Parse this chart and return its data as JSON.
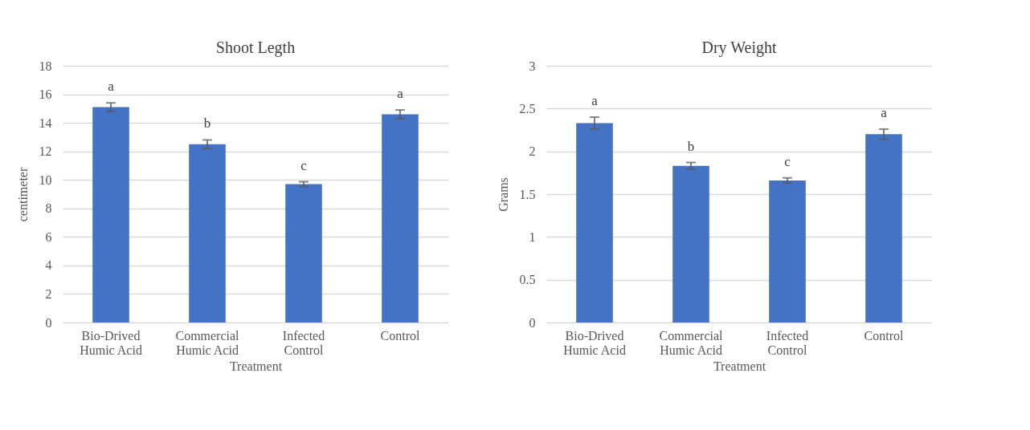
{
  "chart_data": [
    {
      "type": "bar",
      "title": "Shoot Legth",
      "xlabel": "Treatment",
      "ylabel": "centimeter",
      "categories": [
        "Bio-Drived Humic Acid",
        "Commercial Humic Acid",
        "Infected Control",
        "Control"
      ],
      "values": [
        15.1,
        12.5,
        9.7,
        14.6
      ],
      "color": "#4472c4",
      "errors": [
        0.3,
        0.3,
        0.17,
        0.3
      ],
      "ylim": [
        0,
        18
      ],
      "yticks": [
        0,
        2,
        4,
        6,
        8,
        10,
        12,
        14,
        16,
        18
      ],
      "grid": "y",
      "annotations": [
        {
          "text": "a",
          "x": "Bio-Drived Humic Acid",
          "y": 15.4
        },
        {
          "text": "b",
          "x": "Commercial Humic Acid",
          "y": 12.8
        },
        {
          "text": "c",
          "x": "Infected Control",
          "y": 9.87
        },
        {
          "text": "a",
          "x": "Control",
          "y": 14.9
        }
      ]
    },
    {
      "type": "bar",
      "title": "Dry Weight",
      "xlabel": "Treatment",
      "ylabel": "Grams",
      "categories": [
        "Bio-Drived Humic Acid",
        "Commercial Humic Acid",
        "Infected Control",
        "Control"
      ],
      "values": [
        2.33,
        1.83,
        1.66,
        2.2
      ],
      "color": "#4472c4",
      "errors": [
        0.07,
        0.04,
        0.03,
        0.06
      ],
      "ylim": [
        0,
        3
      ],
      "yticks": [
        0,
        0.5,
        1,
        1.5,
        2,
        2.5,
        3
      ],
      "grid": "y",
      "annotations": [
        {
          "text": "a",
          "x": "Bio-Drived Humic Acid",
          "y": 2.4
        },
        {
          "text": "b",
          "x": "Commercial Humic Acid",
          "y": 1.87
        },
        {
          "text": "c",
          "x": "Infected Control",
          "y": 1.69
        },
        {
          "text": "a",
          "x": "Control",
          "y": 2.26
        }
      ]
    }
  ]
}
